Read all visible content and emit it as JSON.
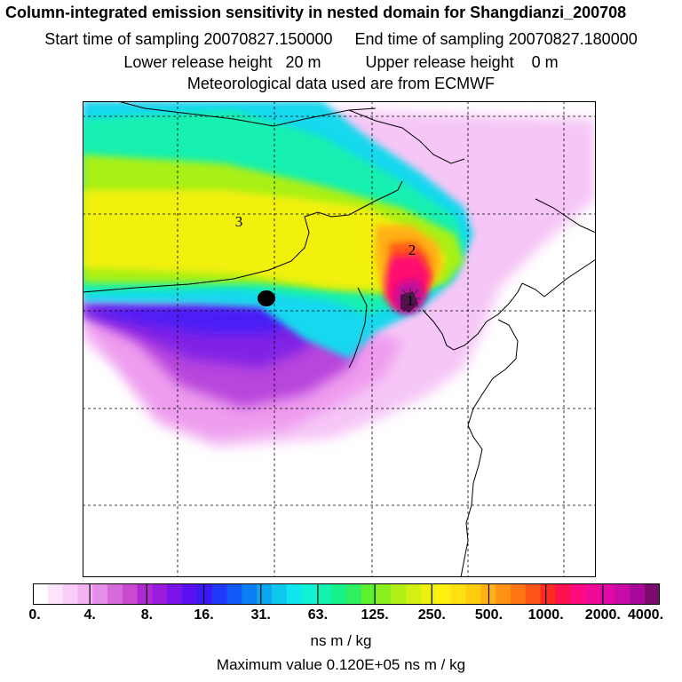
{
  "titles": {
    "main": "Column-integrated emission sensitivity in nested domain for Shangdianzi_200708",
    "sampling": "Start time of sampling 20070827.150000     End time of sampling 20070827.180000",
    "release": "Lower release height   20 m          Upper release height    0 m",
    "met": "Meteorological data used are from ECMWF"
  },
  "map": {
    "cluster_labels": [
      "1",
      "2",
      "3"
    ],
    "station_marker": "filled-circle",
    "grid": "dashed"
  },
  "colorbar": {
    "tick_labels": [
      "0.",
      "4.",
      "8.",
      "16.",
      "31.",
      "63.",
      "125.",
      "250.",
      "500.",
      "1000.",
      "2000.",
      "4000."
    ],
    "colors": [
      "#ffffff",
      "#fde6fd",
      "#f8cdf8",
      "#f3b3f3",
      "#e48ee8",
      "#d76adb",
      "#c94ad0",
      "#b02ad3",
      "#9a1ade",
      "#7a14ea",
      "#5a10f2",
      "#3a18fa",
      "#2038fb",
      "#1058f8",
      "#0a7ef2",
      "#0aa6ee",
      "#10c8ee",
      "#10e6ee",
      "#10f2d6",
      "#12f2b0",
      "#18f08a",
      "#30f060",
      "#5cf030",
      "#8cf020",
      "#b0f018",
      "#d2f014",
      "#eef010",
      "#fff010",
      "#ffe010",
      "#ffcc10",
      "#ffb012",
      "#ff9414",
      "#ff7414",
      "#ff5418",
      "#ff2a20",
      "#ff1050",
      "#ff0a80",
      "#f00a98",
      "#de0aa8",
      "#c80aa8",
      "#a8089a",
      "#7a0a6e"
    ],
    "unit": "ns m / kg",
    "max_value": "Maximum value  0.120E+05 ns m / kg"
  },
  "colors": {
    "frame": "#000000",
    "grid": "#000000",
    "coast": "#000000"
  }
}
